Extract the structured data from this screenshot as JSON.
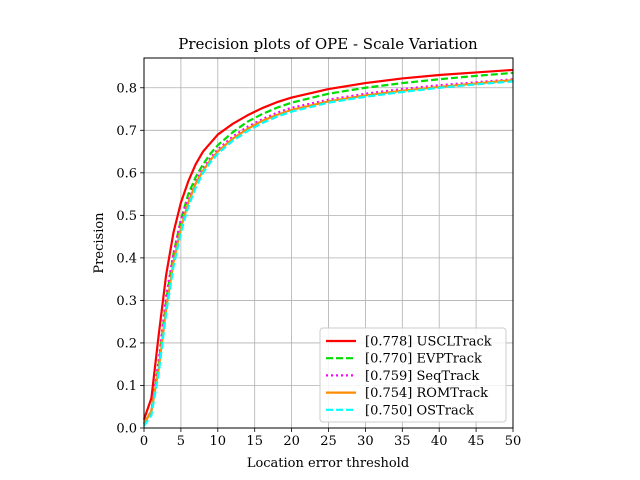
{
  "chart_data": {
    "type": "line",
    "title": "Precision plots of OPE - Scale Variation",
    "xlabel": "Location error threshold",
    "ylabel": "Precision",
    "xlim": [
      0,
      50
    ],
    "ylim": [
      0,
      0.87
    ],
    "xticks": [
      0,
      5,
      10,
      15,
      20,
      25,
      30,
      35,
      40,
      45,
      50
    ],
    "yticks": [
      0.0,
      0.1,
      0.2,
      0.3,
      0.4,
      0.5,
      0.6,
      0.7,
      0.8
    ],
    "xtick_labels": [
      "0",
      "5",
      "10",
      "15",
      "20",
      "25",
      "30",
      "35",
      "40",
      "45",
      "50"
    ],
    "ytick_labels": [
      "0.0",
      "0.1",
      "0.2",
      "0.3",
      "0.4",
      "0.5",
      "0.6",
      "0.7",
      "0.8"
    ],
    "grid": true,
    "legend_position": "lower-right",
    "x": [
      0,
      1,
      2,
      3,
      4,
      5,
      6,
      7,
      8,
      9,
      10,
      12,
      14,
      16,
      18,
      20,
      25,
      30,
      35,
      40,
      45,
      50
    ],
    "series": [
      {
        "name": "[0.778] USCLTrack",
        "color": "#ff0000",
        "dash": "solid",
        "values": [
          0.02,
          0.07,
          0.22,
          0.36,
          0.46,
          0.53,
          0.58,
          0.62,
          0.65,
          0.67,
          0.69,
          0.715,
          0.735,
          0.752,
          0.766,
          0.777,
          0.797,
          0.811,
          0.822,
          0.83,
          0.836,
          0.842
        ]
      },
      {
        "name": "[0.770] EVPTrack",
        "color": "#00dd00",
        "dash": "dashed",
        "values": [
          0.01,
          0.04,
          0.15,
          0.3,
          0.41,
          0.49,
          0.55,
          0.59,
          0.62,
          0.645,
          0.665,
          0.695,
          0.72,
          0.738,
          0.753,
          0.765,
          0.786,
          0.8,
          0.811,
          0.82,
          0.828,
          0.835
        ]
      },
      {
        "name": "[0.759] SeqTrack",
        "color": "#ff00ff",
        "dash": "dotted",
        "values": [
          0.01,
          0.04,
          0.16,
          0.31,
          0.41,
          0.49,
          0.54,
          0.58,
          0.61,
          0.635,
          0.655,
          0.685,
          0.708,
          0.726,
          0.741,
          0.753,
          0.772,
          0.786,
          0.797,
          0.806,
          0.813,
          0.82
        ]
      },
      {
        "name": "[0.754] ROMTrack",
        "color": "#ff8c00",
        "dash": "solid",
        "values": [
          0.01,
          0.04,
          0.14,
          0.28,
          0.39,
          0.47,
          0.53,
          0.575,
          0.605,
          0.63,
          0.65,
          0.68,
          0.703,
          0.722,
          0.736,
          0.748,
          0.768,
          0.782,
          0.793,
          0.802,
          0.81,
          0.818
        ]
      },
      {
        "name": "[0.750] OSTrack",
        "color": "#00ffff",
        "dash": "dashed",
        "values": [
          0.005,
          0.03,
          0.13,
          0.27,
          0.38,
          0.46,
          0.52,
          0.565,
          0.6,
          0.625,
          0.645,
          0.675,
          0.698,
          0.717,
          0.732,
          0.744,
          0.765,
          0.779,
          0.79,
          0.8,
          0.808,
          0.815
        ]
      }
    ]
  }
}
